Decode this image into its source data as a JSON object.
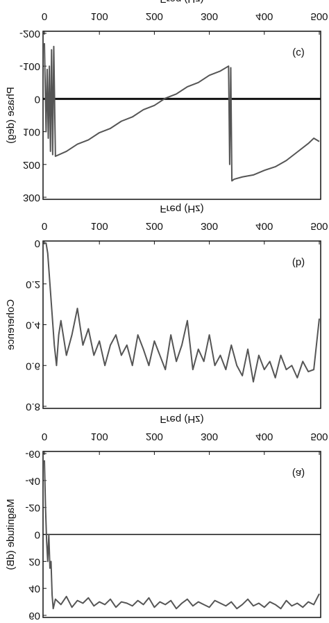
{
  "chart_data": [
    {
      "type": "line",
      "panel_label": "(a)",
      "xlabel": "Freq (Hz)",
      "ylabel": "Magnitude (dB)",
      "x": [
        0,
        2,
        4,
        6,
        8,
        10,
        12,
        14,
        16,
        20,
        30,
        40,
        50,
        60,
        70,
        80,
        90,
        100,
        110,
        120,
        130,
        140,
        150,
        160,
        170,
        180,
        190,
        200,
        210,
        220,
        230,
        240,
        250,
        260,
        270,
        280,
        290,
        300,
        310,
        320,
        330,
        340,
        350,
        360,
        370,
        380,
        390,
        400,
        410,
        420,
        430,
        440,
        450,
        460,
        470,
        480,
        490,
        500
      ],
      "series": [
        {
          "color": "#555555",
          "values": [
            -55,
            -20,
            5,
            20,
            0,
            25,
            20,
            45,
            55,
            48,
            52,
            46,
            54,
            49,
            51,
            47,
            53,
            50,
            52,
            48,
            54,
            50,
            51,
            53,
            49,
            52,
            47,
            54,
            50,
            52,
            49,
            55,
            51,
            48,
            53,
            50,
            52,
            54,
            49,
            51,
            53,
            50,
            55,
            52,
            48,
            53,
            51,
            54,
            50,
            52,
            55,
            49,
            53,
            51,
            54,
            50,
            52,
            44
          ]
        }
      ],
      "xlim": [
        0,
        500
      ],
      "xticks": [
        0,
        100,
        200,
        300,
        400,
        500
      ],
      "ylim": [
        -60,
        60
      ],
      "yticks": [
        -60,
        -40,
        -20,
        0,
        20,
        40,
        60
      ],
      "zero_line": true,
      "zero_line_width": 1.5
    },
    {
      "type": "line",
      "panel_label": "(b)",
      "xlabel": "Freq (Hz)",
      "ylabel": "Coherence",
      "x": [
        0,
        3,
        6,
        10,
        14,
        18,
        22,
        26,
        30,
        40,
        50,
        60,
        70,
        80,
        90,
        100,
        110,
        120,
        130,
        140,
        150,
        160,
        170,
        180,
        190,
        200,
        210,
        220,
        230,
        240,
        250,
        260,
        270,
        280,
        290,
        300,
        310,
        320,
        330,
        340,
        350,
        360,
        370,
        380,
        390,
        400,
        410,
        420,
        430,
        440,
        450,
        460,
        470,
        480,
        490,
        500
      ],
      "series": [
        {
          "color": "#555555",
          "values": [
            0,
            0,
            0.05,
            0.2,
            0.35,
            0.5,
            0.6,
            0.45,
            0.38,
            0.55,
            0.45,
            0.32,
            0.5,
            0.42,
            0.55,
            0.48,
            0.6,
            0.5,
            0.45,
            0.55,
            0.5,
            0.6,
            0.45,
            0.52,
            0.6,
            0.48,
            0.55,
            0.62,
            0.45,
            0.58,
            0.5,
            0.38,
            0.62,
            0.52,
            0.58,
            0.45,
            0.6,
            0.55,
            0.62,
            0.5,
            0.6,
            0.65,
            0.52,
            0.68,
            0.55,
            0.62,
            0.58,
            0.66,
            0.55,
            0.62,
            0.6,
            0.66,
            0.58,
            0.63,
            0.62,
            0.37
          ]
        }
      ],
      "xlim": [
        0,
        500
      ],
      "xticks": [
        0,
        100,
        200,
        300,
        400,
        500
      ],
      "ylim": [
        0,
        0.8
      ],
      "yticks": [
        0,
        0.2,
        0.4,
        0.6,
        0.8
      ],
      "zero_line": false
    },
    {
      "type": "line",
      "panel_label": "(c)",
      "xlabel": "Freq (Hz)",
      "ylabel": "Phase (deg)",
      "x": [
        0,
        3,
        5,
        7,
        9,
        11,
        13,
        15,
        17,
        20,
        40,
        60,
        80,
        100,
        120,
        140,
        160,
        180,
        200,
        220,
        240,
        260,
        280,
        300,
        320,
        335,
        337,
        339,
        341,
        345,
        360,
        380,
        400,
        420,
        440,
        460,
        480,
        490,
        500
      ],
      "series": [
        {
          "color": "#555555",
          "values": [
            -170,
            100,
            -90,
            120,
            -100,
            160,
            -150,
            170,
            -160,
            175,
            160,
            138,
            125,
            103,
            90,
            68,
            55,
            33,
            20,
            -2,
            -15,
            -37,
            -50,
            -72,
            -85,
            -100,
            200,
            -95,
            250,
            245,
            238,
            232,
            218,
            207,
            188,
            162,
            136,
            120,
            130
          ]
        }
      ],
      "xlim": [
        0,
        500
      ],
      "xticks": [
        0,
        100,
        200,
        300,
        400,
        500
      ],
      "ylim": [
        -200,
        300
      ],
      "yticks": [
        -200,
        -100,
        0,
        100,
        200,
        300
      ],
      "zero_line": true,
      "zero_line_width": 3
    }
  ]
}
